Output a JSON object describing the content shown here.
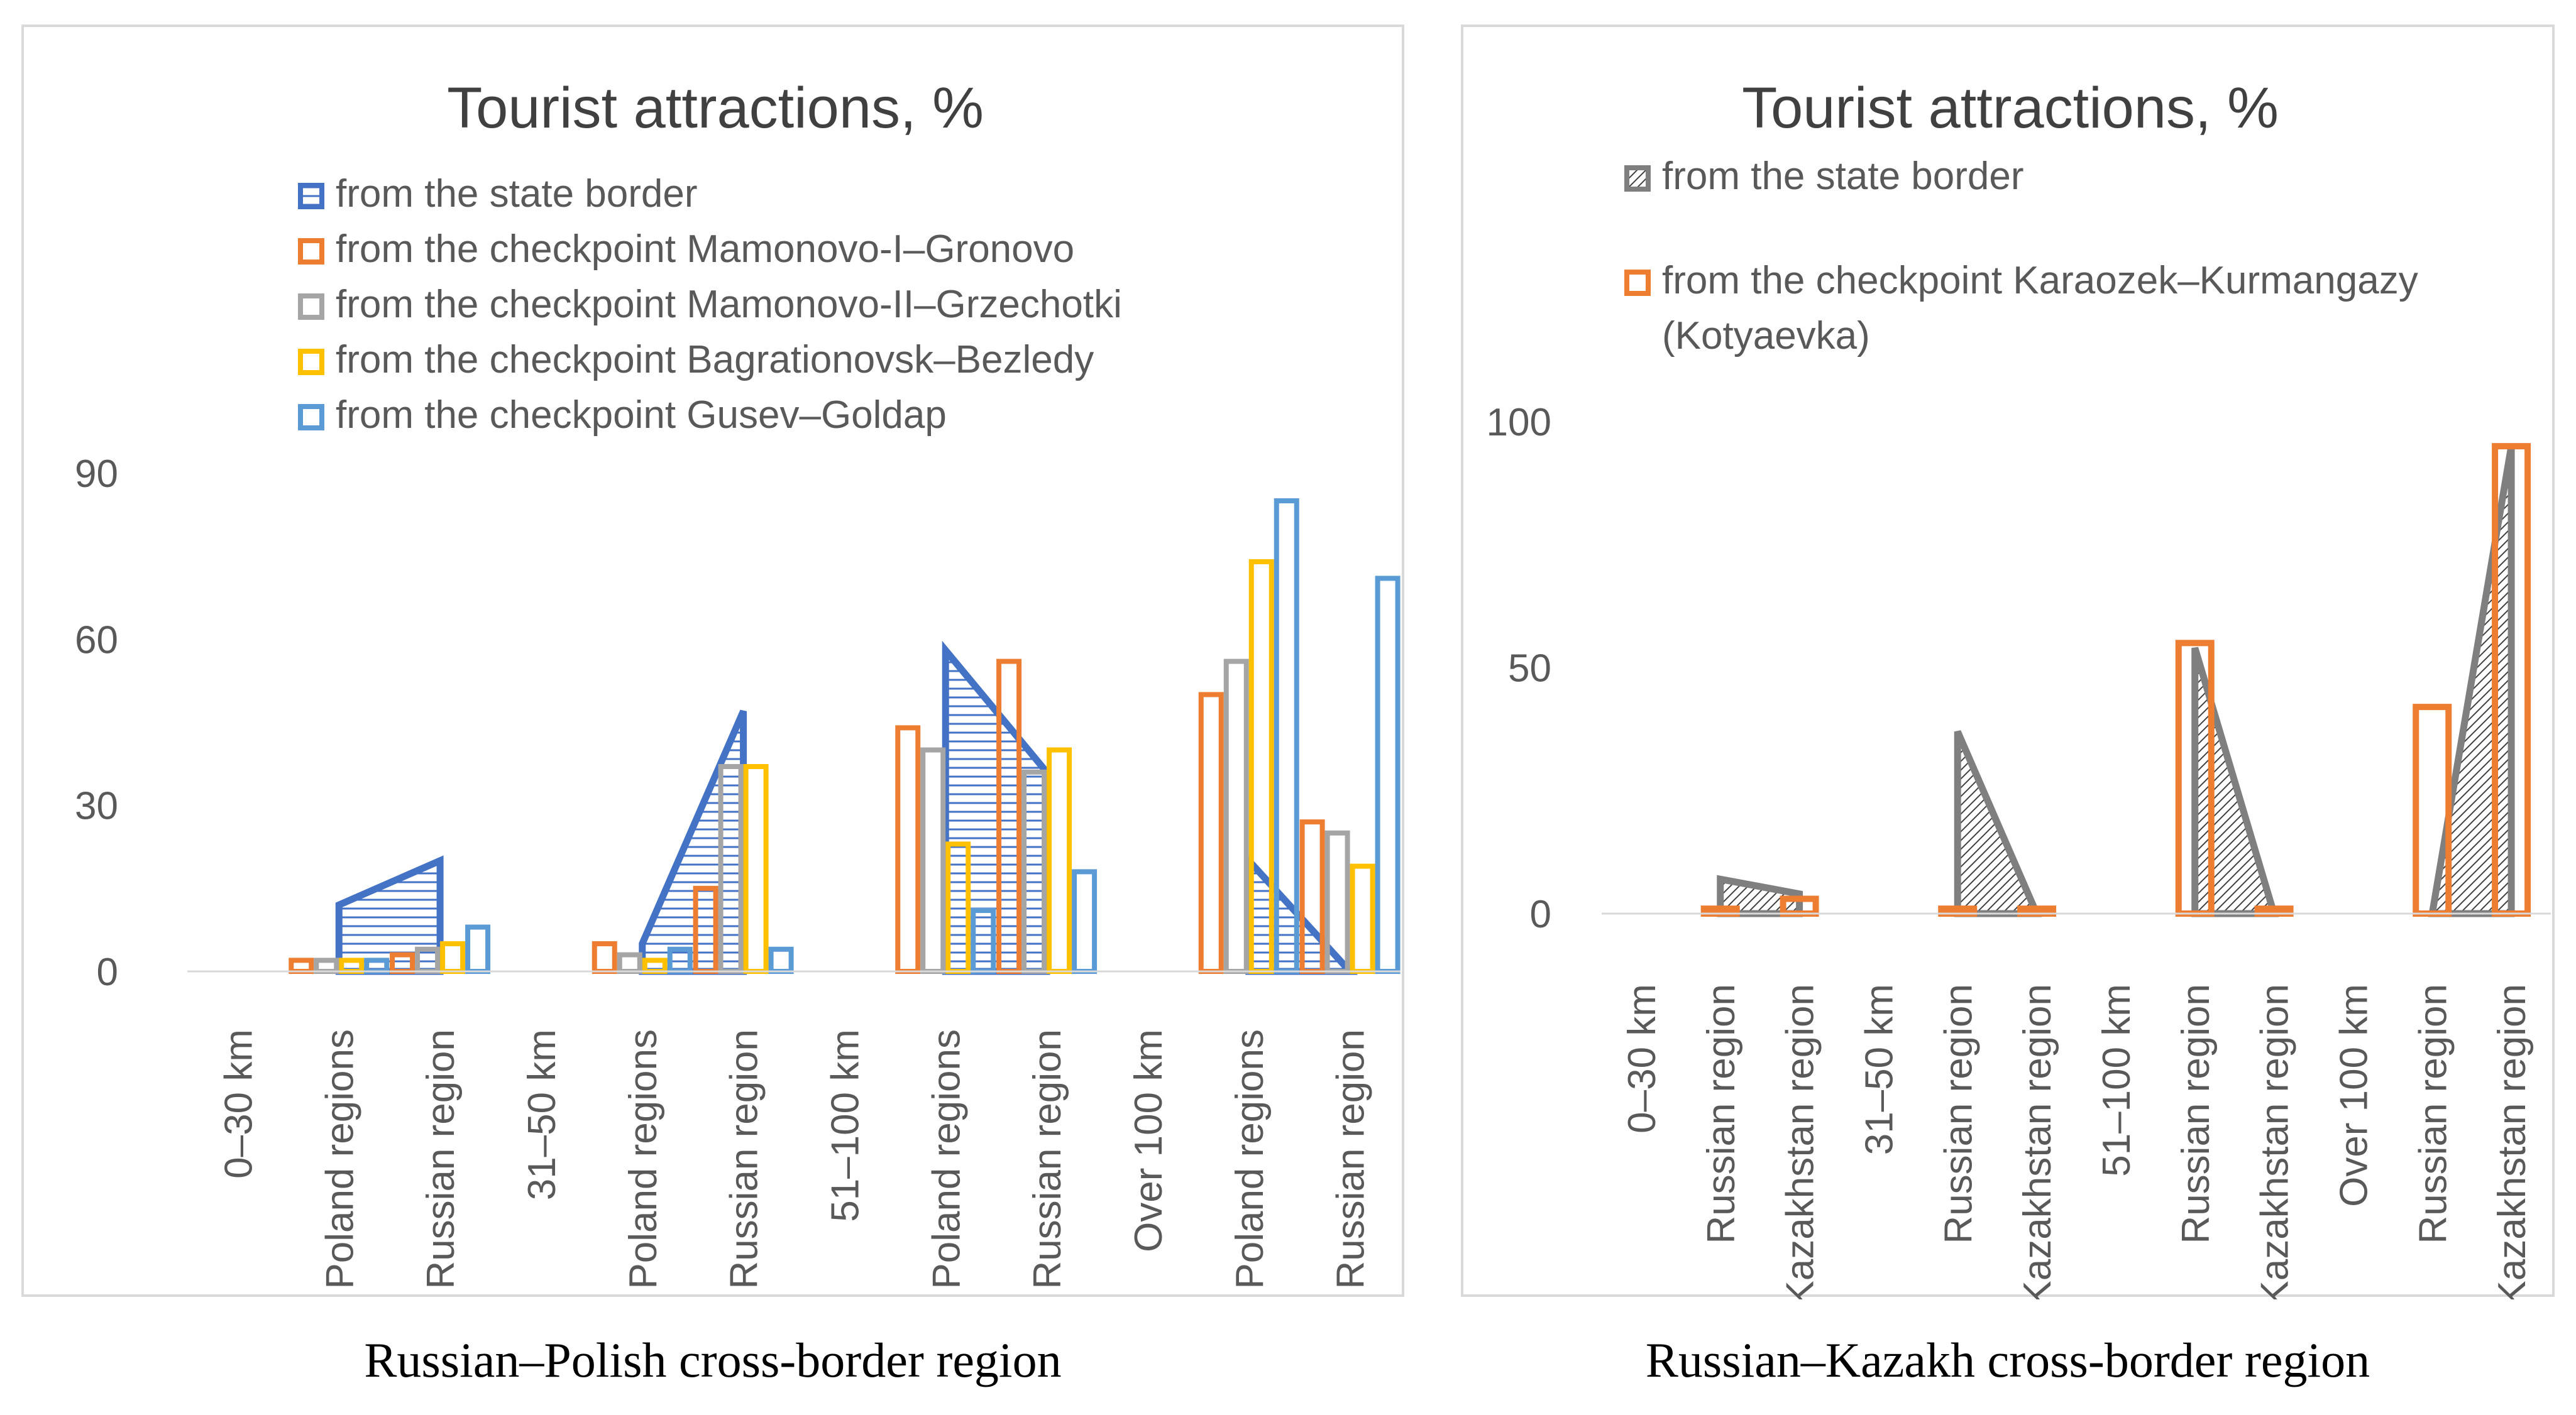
{
  "captions": {
    "left": "Russian–Polish cross-border region",
    "right": "Russian–Kazakh cross-border region"
  },
  "colors": {
    "axis_text": "#595959",
    "title": "#404040",
    "grid_axis": "#d9d9d9"
  },
  "chart_data": [
    {
      "id": "russian-polish",
      "type": "bar",
      "title": "Tourist attractions, %",
      "ylim": [
        0,
        90
      ],
      "yticks": [
        0,
        30,
        60,
        90
      ],
      "grid": false,
      "legend_position": "top",
      "categories": [
        "0–30 km",
        "Poland regions",
        "Russian region",
        "31–50 km",
        "Poland regions",
        "Russian region",
        "51–100 km",
        "Poland regions",
        "Russian region",
        "Over 100 km",
        "Poland regions",
        "Russian region"
      ],
      "area_series": {
        "name": "from the state border",
        "color": "#4472c4",
        "pattern": "horizontal",
        "values": [
          0,
          12,
          20,
          0,
          5,
          47,
          0,
          58,
          36,
          0,
          20,
          0
        ]
      },
      "series": [
        {
          "name": "from the checkpoint Mamonovo-I–Gronovo",
          "color": "#ed7d31",
          "values": [
            0,
            2,
            3,
            0,
            5,
            15,
            0,
            44,
            56,
            0,
            50,
            27
          ]
        },
        {
          "name": "from the checkpoint Mamonovo-II–Grzechotki",
          "color": "#a5a5a5",
          "values": [
            0,
            2,
            4,
            0,
            3,
            37,
            0,
            40,
            36,
            0,
            56,
            25
          ]
        },
        {
          "name": "from the checkpoint Bagrationovsk–Bezledy",
          "color": "#ffc000",
          "values": [
            0,
            2,
            5,
            0,
            2,
            37,
            0,
            23,
            40,
            0,
            74,
            19
          ]
        },
        {
          "name": "from the checkpoint Gusev–Goldap",
          "color": "#5b9bd5",
          "values": [
            0,
            2,
            8,
            0,
            4,
            4,
            0,
            11,
            18,
            0,
            85,
            71
          ]
        }
      ]
    },
    {
      "id": "russian-kazakh",
      "type": "bar",
      "title": "Tourist attractions, %",
      "ylim": [
        0,
        100
      ],
      "yticks": [
        0,
        50,
        100
      ],
      "grid": false,
      "legend_position": "top",
      "categories": [
        "0–30 km",
        "Russian region",
        "Kazakhstan region",
        "31–50 km",
        "Russian region",
        "Kazakhstan region",
        "51–100 km",
        "Russian region",
        "Kazakhstan region",
        "Over 100 km",
        "Russian region",
        "Kazakhstan region"
      ],
      "area_series": {
        "name": "from the state border",
        "color": "#7f7f7f",
        "pattern": "diagonal",
        "values": [
          0,
          7,
          4,
          0,
          37,
          0,
          0,
          54,
          0,
          0,
          0,
          95
        ]
      },
      "series": [
        {
          "name": "from the checkpoint Karaozek–Kurmangazy (Kotyaevka)",
          "legend_lines": [
            "from the checkpoint Karaozek–Kurmangazy",
            "(Kotyaevka)"
          ],
          "color": "#ed7d31",
          "values": [
            0,
            1,
            3,
            0,
            1,
            1,
            0,
            55,
            1,
            0,
            42,
            95
          ]
        }
      ]
    }
  ]
}
